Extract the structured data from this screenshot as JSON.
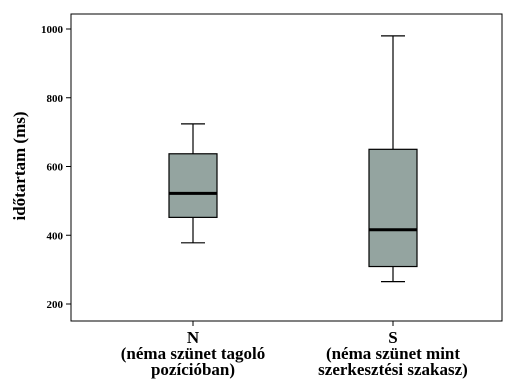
{
  "chart_data": {
    "type": "boxplot",
    "ylabel": "időtartam (ms)",
    "ylim": [
      150,
      1050
    ],
    "yticks": [
      200,
      400,
      600,
      800,
      1000
    ],
    "ytick_labels": [
      "200",
      "400",
      "600",
      "800",
      "1000"
    ],
    "categories": [
      {
        "label_lines": [
          "N",
          "(néma szünet tagoló",
          "pozícióban)"
        ],
        "min": 378,
        "q1": 452,
        "median": 522,
        "q3": 637,
        "max": 724
      },
      {
        "label_lines": [
          "S",
          "(néma szünet mint",
          "szerkesztési szakasz)"
        ],
        "min": 265,
        "q1": 309,
        "median": 416,
        "q3": 650,
        "max": 980
      }
    ],
    "colors": {
      "box_fill": "#94a4a0",
      "stroke": "#000000"
    }
  }
}
